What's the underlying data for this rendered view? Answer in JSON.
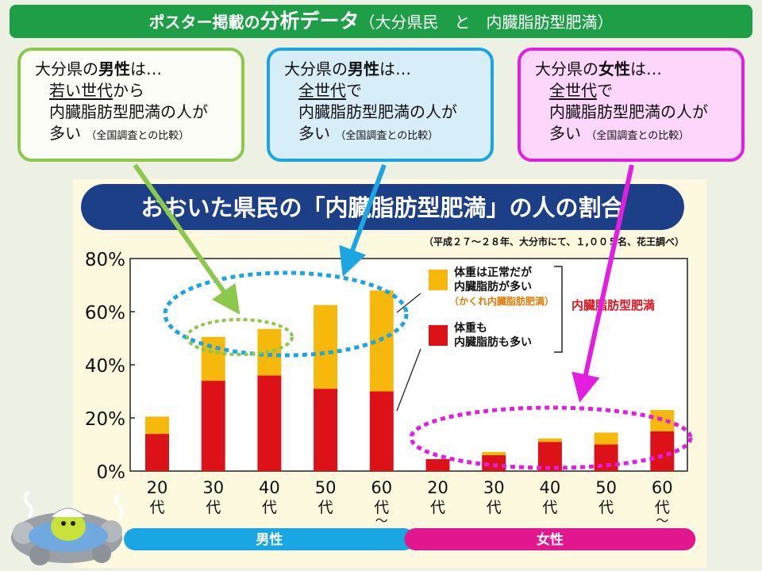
{
  "banner": {
    "part1": "ポスター掲載の",
    "part2": "分析データ",
    "part3": "（大分県民　と　内臓脂肪型肥満）"
  },
  "callouts": [
    {
      "line1_a": "大分県の",
      "line1_b": "男性",
      "line1_c": "は…",
      "line2_u": "若い世代",
      "line2_rest": "から",
      "line3": "内臓脂肪型肥満の人が",
      "line4": "多い",
      "line4_small": "（全国調査との比較）"
    },
    {
      "line1_a": "大分県の",
      "line1_b": "男性",
      "line1_c": "は…",
      "line2_u": "全世代",
      "line2_rest": "で",
      "line3": "内臓脂肪型肥満の人が",
      "line4": "多い",
      "line4_small": "（全国調査との比較）"
    },
    {
      "line1_a": "大分県の",
      "line1_b": "女性",
      "line1_c": "は…",
      "line2_u": "全世代",
      "line2_rest": "で",
      "line3": "内臓脂肪型肥満の人が",
      "line4": "多い",
      "line4_small": "（全国調査との比較）"
    }
  ],
  "colors": {
    "hidden": "#f6b90b",
    "visceral": "#dd1219",
    "male": "#1aa6e2",
    "female": "#e2168e",
    "title_bg": "#1c3f88"
  },
  "chart_data": {
    "type": "bar",
    "stacked": true,
    "title": "おおいた県民の「内臓脂肪型肥満」の人の割合",
    "subtitle": "（平成２７～２８年、大分市にて、１,００５名、花王調べ）",
    "ylabel": "",
    "ylim": [
      0,
      80
    ],
    "yticks": [
      "0%",
      "20%",
      "40%",
      "60%",
      "80%"
    ],
    "categories": [
      "20代",
      "30代",
      "40代",
      "50代",
      "60代～",
      "20代",
      "30代",
      "40代",
      "50代",
      "60代～"
    ],
    "groups": [
      {
        "name": "男性",
        "indices": [
          0,
          1,
          2,
          3,
          4
        ]
      },
      {
        "name": "女性",
        "indices": [
          5,
          6,
          7,
          8,
          9
        ]
      }
    ],
    "series": [
      {
        "name": "体重も内臓脂肪も多い",
        "values": [
          14,
          34,
          36,
          31,
          30,
          4.5,
          6,
          11,
          10,
          15
        ]
      },
      {
        "name": "体重は正常だが内臓脂肪が多い（かくれ内臓脂肪肥満）",
        "values": [
          6.5,
          16.5,
          17.5,
          31.5,
          38,
          0,
          1.2,
          1.3,
          4.5,
          8
        ]
      }
    ],
    "legend": {
      "hidden_label_1": "体重は正常だが",
      "hidden_label_2": "内臓脂肪が多い",
      "hidden_sub": "（かくれ内臓脂肪肥満）",
      "visceral_label_1": "体重も",
      "visceral_label_2": "内臓脂肪も多い",
      "bracket_label": "内臓脂肪型肥満"
    }
  }
}
